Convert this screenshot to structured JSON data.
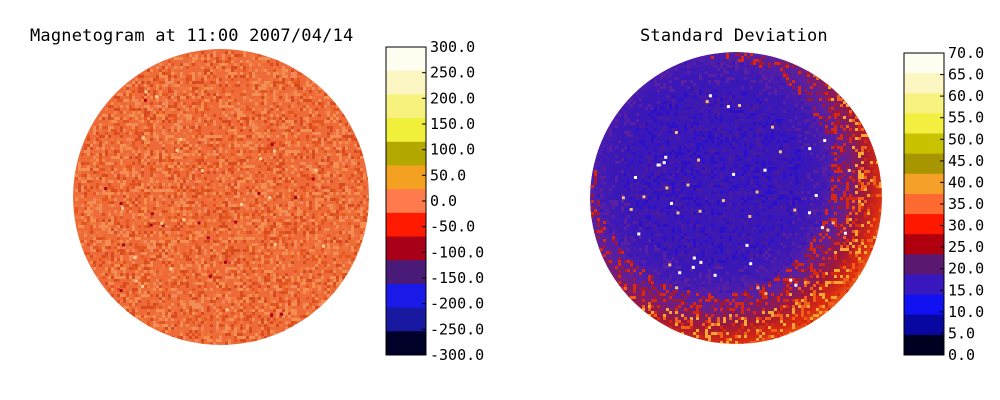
{
  "chart_data": [
    {
      "type": "heatmap",
      "title": "Magnetogram at 11:00 2007/04/14",
      "colorbar": {
        "range": [
          -300,
          300
        ],
        "tick_labels": [
          "300.0",
          "250.0",
          "200.0",
          "150.0",
          "100.0",
          "50.0",
          "0.0",
          "-50.0",
          "-100.0",
          "-150.0",
          "-200.0",
          "-250.0",
          "-300.0"
        ],
        "segment_colors": [
          "#fdfdf0",
          "#fbf6c2",
          "#f7f27e",
          "#f0ef3a",
          "#b3a800",
          "#f4a020",
          "#ff7b4e",
          "#ff1a00",
          "#a80018",
          "#4a1a78",
          "#1a1ae8",
          "#1818a0",
          "#000028"
        ]
      },
      "background_color": "#ee6a38",
      "noise_colors": [
        "#f0783c",
        "#e4561e",
        "#f59050",
        "#d84a20",
        "#f08c5a"
      ]
    },
    {
      "type": "heatmap",
      "title": "Standard Deviation",
      "colorbar": {
        "range": [
          0,
          70
        ],
        "tick_labels": [
          "70.0",
          "65.0",
          "60.0",
          "55.0",
          "50.0",
          "45.0",
          "40.0",
          "35.0",
          "30.0",
          "25.0",
          "20.0",
          "15.0",
          "10.0",
          "5.0",
          "0.0"
        ],
        "segment_colors": [
          "#fdfdf0",
          "#fbf6c2",
          "#f8f280",
          "#f2ef40",
          "#c9c200",
          "#a89600",
          "#f5a028",
          "#ff6a30",
          "#ff1800",
          "#b00010",
          "#5a1870",
          "#3a18c0",
          "#1010f0",
          "#0808a0",
          "#000020"
        ]
      },
      "center_color": "#3a18b8",
      "ring_colors": [
        "#5a20a0",
        "#a01838",
        "#d82810",
        "#f06018",
        "#f8a830"
      ]
    }
  ]
}
